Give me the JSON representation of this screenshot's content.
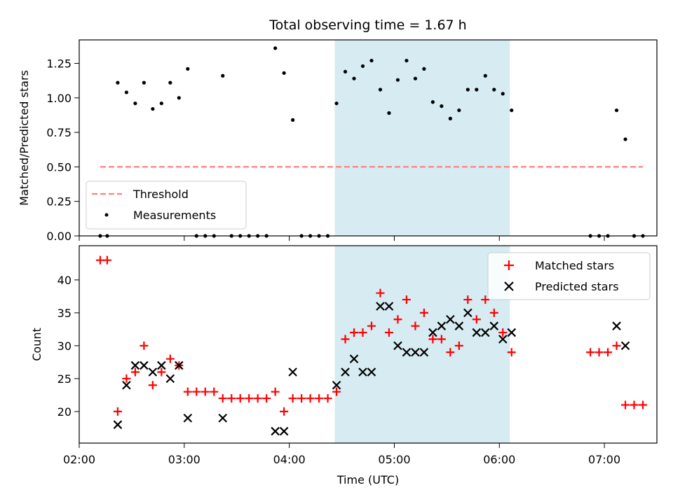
{
  "chart_data": [
    {
      "type": "scatter",
      "title": "Total observing time = 1.67 h",
      "ylabel": "Matched/Predicted stars",
      "xlim": [
        "02:00",
        "07:30"
      ],
      "ylim": [
        0,
        1.42
      ],
      "yticks": [
        "0.00",
        "0.25",
        "0.50",
        "0.75",
        "1.00",
        "1.25"
      ],
      "highlight_span": [
        "04:26",
        "06:06"
      ],
      "highlight_color": "#add8e6",
      "legend": {
        "position": "lower-left",
        "entries": [
          "Threshold",
          "Measurements"
        ]
      },
      "threshold": {
        "name": "Threshold",
        "value": 0.5,
        "x_start": "02:12",
        "x_end": "07:22",
        "color": "#ff7f7f"
      },
      "series": [
        {
          "name": "Measurements",
          "color": "#000000",
          "x": [
            "02:12",
            "02:16",
            "02:22",
            "02:27",
            "02:32",
            "02:37",
            "02:42",
            "02:47",
            "02:52",
            "02:57",
            "03:02",
            "03:07",
            "03:12",
            "03:17",
            "03:22",
            "03:27",
            "03:32",
            "03:37",
            "03:42",
            "03:47",
            "03:52",
            "03:57",
            "04:02",
            "04:07",
            "04:12",
            "04:17",
            "04:22",
            "04:27",
            "04:32",
            "04:37",
            "04:42",
            "04:47",
            "04:52",
            "04:57",
            "05:02",
            "05:07",
            "05:12",
            "05:17",
            "05:22",
            "05:27",
            "05:32",
            "05:37",
            "05:42",
            "05:47",
            "05:52",
            "05:57",
            "06:02",
            "06:07",
            "06:52",
            "06:57",
            "07:02",
            "07:07",
            "07:12",
            "07:17",
            "07:22"
          ],
          "y": [
            0,
            0,
            1.11,
            1.04,
            0.96,
            1.11,
            0.92,
            0.96,
            1.11,
            1.0,
            1.21,
            0,
            0,
            0,
            1.16,
            0,
            0,
            0,
            0,
            0,
            1.36,
            1.18,
            0.84,
            0,
            0,
            0,
            0,
            0.96,
            1.19,
            1.14,
            1.23,
            1.27,
            1.06,
            0.89,
            1.13,
            1.27,
            1.14,
            1.21,
            0.97,
            0.94,
            0.85,
            0.91,
            1.06,
            1.06,
            1.16,
            1.06,
            1.03,
            0.91,
            0,
            0,
            0,
            0.91,
            0.7,
            0,
            0
          ]
        }
      ]
    },
    {
      "type": "scatter",
      "xlabel": "Time (UTC)",
      "ylabel": "Count",
      "xlim": [
        "02:00",
        "07:30"
      ],
      "ylim": [
        15.2,
        45.2
      ],
      "xticks": [
        "02:00",
        "03:00",
        "04:00",
        "05:00",
        "06:00",
        "07:00"
      ],
      "yticks": [
        "20",
        "25",
        "30",
        "35",
        "40"
      ],
      "highlight_span": [
        "04:26",
        "06:06"
      ],
      "legend": {
        "position": "upper-right",
        "entries": [
          "Matched stars",
          "Predicted stars"
        ]
      },
      "series": [
        {
          "name": "Matched stars",
          "marker": "+",
          "color": "#ff0000",
          "x": [
            "02:12",
            "02:16",
            "02:22",
            "02:27",
            "02:32",
            "02:37",
            "02:42",
            "02:47",
            "02:52",
            "02:57",
            "03:02",
            "03:07",
            "03:12",
            "03:17",
            "03:22",
            "03:27",
            "03:32",
            "03:37",
            "03:42",
            "03:47",
            "03:52",
            "03:57",
            "04:02",
            "04:07",
            "04:12",
            "04:17",
            "04:22",
            "04:27",
            "04:32",
            "04:37",
            "04:42",
            "04:47",
            "04:52",
            "04:57",
            "05:02",
            "05:07",
            "05:12",
            "05:17",
            "05:22",
            "05:27",
            "05:32",
            "05:37",
            "05:42",
            "05:47",
            "05:52",
            "05:57",
            "06:02",
            "06:07",
            "06:52",
            "06:57",
            "07:02",
            "07:07",
            "07:12",
            "07:17",
            "07:22"
          ],
          "y": [
            43,
            43,
            20,
            25,
            26,
            30,
            24,
            26,
            28,
            27,
            23,
            23,
            23,
            23,
            22,
            22,
            22,
            22,
            22,
            22,
            23,
            20,
            22,
            22,
            22,
            22,
            22,
            23,
            31,
            32,
            32,
            33,
            38,
            32,
            34,
            37,
            33,
            35,
            31,
            31,
            29,
            30,
            37,
            34,
            37,
            35,
            32,
            29,
            29,
            29,
            29,
            30,
            21,
            21,
            21
          ]
        },
        {
          "name": "Predicted stars",
          "marker": "x",
          "color": "#000000",
          "x": [
            "02:22",
            "02:27",
            "02:32",
            "02:37",
            "02:42",
            "02:47",
            "02:52",
            "02:57",
            "03:02",
            "03:22",
            "03:52",
            "03:57",
            "04:02",
            "04:27",
            "04:32",
            "04:37",
            "04:42",
            "04:47",
            "04:52",
            "04:57",
            "05:02",
            "05:07",
            "05:12",
            "05:17",
            "05:22",
            "05:27",
            "05:32",
            "05:37",
            "05:42",
            "05:47",
            "05:52",
            "05:57",
            "06:02",
            "06:07",
            "07:07",
            "07:12"
          ],
          "y": [
            18,
            24,
            27,
            27,
            26,
            27,
            25,
            27,
            19,
            19,
            17,
            17,
            26,
            24,
            26,
            28,
            26,
            26,
            36,
            36,
            30,
            29,
            29,
            29,
            32,
            33,
            34,
            33,
            35,
            32,
            32,
            33,
            31,
            32,
            33,
            30
          ]
        }
      ]
    }
  ]
}
